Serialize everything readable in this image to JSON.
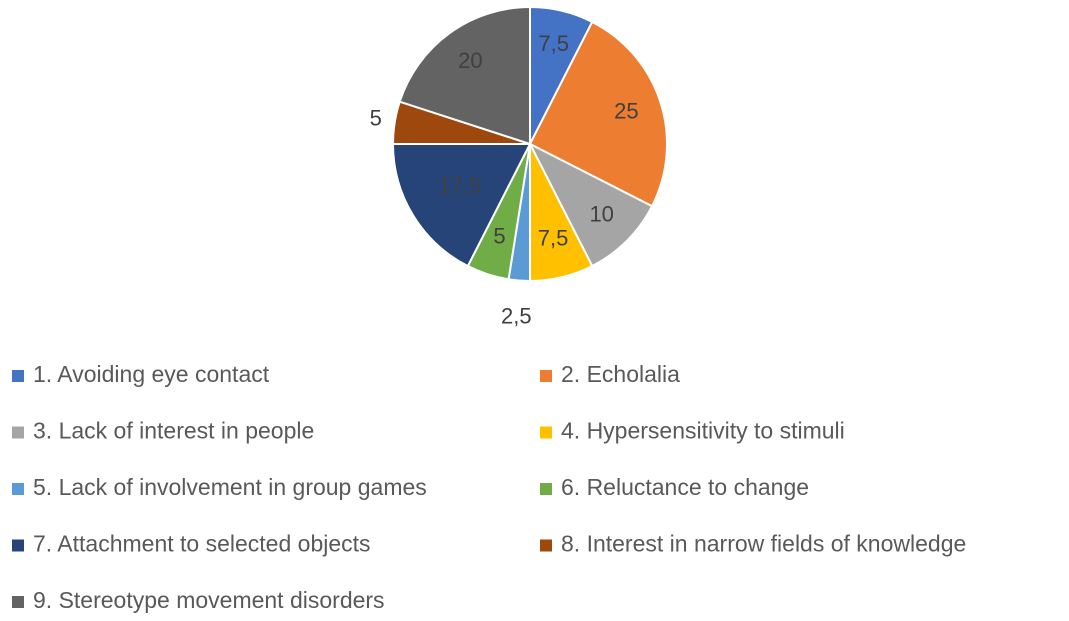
{
  "chart_data": {
    "type": "pie",
    "categories": [
      "1. Avoiding eye contact",
      "2. Echolalia",
      "3. Lack of interest in people",
      "4. Hypersensitivity to stimuli",
      "5. Lack of involvement in group games",
      "6. Reluctance to change",
      "7. Attachment to selected objects",
      "8. Interest in narrow fields of knowledge",
      "9. Stereotype movement disorders"
    ],
    "values": [
      7.5,
      25,
      10,
      7.5,
      2.5,
      5,
      17.5,
      5,
      20
    ],
    "value_labels": [
      "7,5",
      "25",
      "10",
      "7,5",
      "2,5",
      "5",
      "17,5",
      "5",
      "20"
    ],
    "colors": [
      "#4472c4",
      "#ed7d31",
      "#a5a5a5",
      "#ffc000",
      "#5b9bd5",
      "#70ad47",
      "#264478",
      "#9e480e",
      "#636363"
    ],
    "legend": "bottom"
  }
}
